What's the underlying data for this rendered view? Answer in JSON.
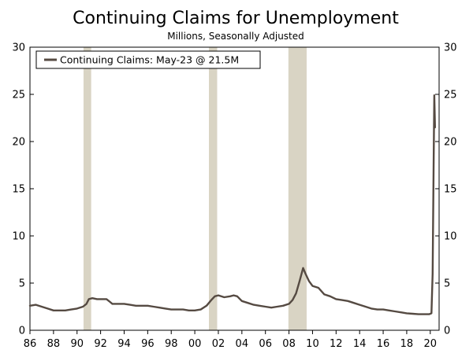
{
  "chart_data": {
    "type": "line",
    "title": "Continuing Claims for Unemployment",
    "subtitle": "Millions, Seasonally Adjusted",
    "xlabel": "",
    "ylabel": "",
    "xlim": [
      1986.0,
      2020.75
    ],
    "ylim": [
      0,
      30
    ],
    "y_ticks": [
      0,
      5,
      10,
      15,
      20,
      25,
      30
    ],
    "y_tick_labels": [
      "0",
      "5",
      "10",
      "15",
      "20",
      "25",
      "30"
    ],
    "x_ticks": [
      1986,
      1988,
      1990,
      1992,
      1994,
      1996,
      1998,
      2000,
      2002,
      2004,
      2006,
      2008,
      2010,
      2012,
      2014,
      2016,
      2018,
      2020
    ],
    "x_tick_labels": [
      "86",
      "88",
      "90",
      "92",
      "94",
      "96",
      "98",
      "00",
      "02",
      "04",
      "06",
      "08",
      "10",
      "12",
      "14",
      "16",
      "18",
      "20"
    ],
    "dual_y_axis": true,
    "grid": false,
    "legend_position": "top-left",
    "recessions": [
      [
        1990.55,
        1991.2
      ],
      [
        2001.2,
        2001.9
      ],
      [
        2007.95,
        2009.5
      ]
    ],
    "colors": {
      "line": "#554a42",
      "recession": "#d9d4c4",
      "axis": "#000000"
    },
    "series": [
      {
        "name": "Continuing Claims: May-23 @ 21.5M",
        "x": [
          1986.0,
          1986.5,
          1987.0,
          1987.5,
          1988.0,
          1988.5,
          1989.0,
          1989.5,
          1990.0,
          1990.5,
          1990.8,
          1991.0,
          1991.3,
          1991.7,
          1992.0,
          1992.5,
          1992.8,
          1993.0,
          1993.5,
          1994.0,
          1994.5,
          1995.0,
          1995.5,
          1996.0,
          1996.5,
          1997.0,
          1997.5,
          1998.0,
          1998.5,
          1999.0,
          1999.5,
          2000.0,
          2000.5,
          2001.0,
          2001.4,
          2001.7,
          2002.0,
          2002.5,
          2003.0,
          2003.3,
          2003.6,
          2004.0,
          2004.5,
          2005.0,
          2005.5,
          2006.0,
          2006.5,
          2007.0,
          2007.5,
          2008.0,
          2008.3,
          2008.6,
          2008.9,
          2009.2,
          2009.4,
          2009.7,
          2010.0,
          2010.5,
          2011.0,
          2011.5,
          2012.0,
          2012.5,
          2013.0,
          2013.5,
          2014.0,
          2014.5,
          2015.0,
          2015.5,
          2016.0,
          2016.5,
          2017.0,
          2017.5,
          2018.0,
          2018.5,
          2019.0,
          2019.5,
          2019.9,
          2020.1,
          2020.2,
          2020.28,
          2020.34,
          2020.4
        ],
        "values": [
          2.6,
          2.7,
          2.5,
          2.3,
          2.1,
          2.1,
          2.1,
          2.2,
          2.3,
          2.5,
          2.8,
          3.3,
          3.4,
          3.3,
          3.3,
          3.3,
          3.0,
          2.8,
          2.8,
          2.8,
          2.7,
          2.6,
          2.6,
          2.6,
          2.5,
          2.4,
          2.3,
          2.2,
          2.2,
          2.2,
          2.1,
          2.1,
          2.2,
          2.6,
          3.2,
          3.6,
          3.7,
          3.5,
          3.6,
          3.7,
          3.6,
          3.1,
          2.9,
          2.7,
          2.6,
          2.5,
          2.4,
          2.5,
          2.6,
          2.8,
          3.2,
          3.9,
          5.2,
          6.6,
          6.0,
          5.2,
          4.7,
          4.5,
          3.8,
          3.6,
          3.3,
          3.2,
          3.1,
          2.9,
          2.7,
          2.5,
          2.3,
          2.2,
          2.2,
          2.1,
          2.0,
          1.9,
          1.8,
          1.75,
          1.7,
          1.7,
          1.7,
          1.8,
          6.0,
          17.0,
          24.9,
          21.5
        ]
      }
    ]
  }
}
